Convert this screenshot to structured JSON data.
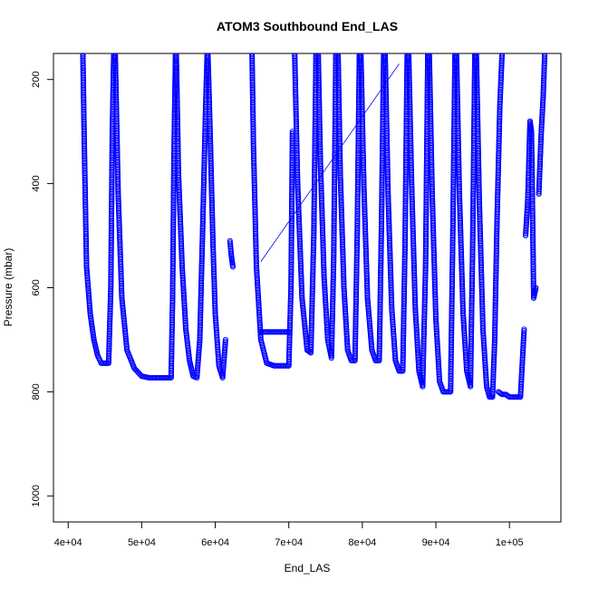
{
  "chart_data": {
    "type": "scatter",
    "title": "ATOM3 Southbound End_LAS",
    "xlabel": "End_LAS",
    "ylabel": "Pressure (mbar)",
    "xlim": [
      38000,
      107000
    ],
    "ylim": [
      1050,
      150
    ],
    "y_reversed": true,
    "grid": false,
    "legend": "none",
    "point_color": "#0000ff",
    "x_ticks": [
      {
        "value": 40000,
        "label": "4e+04"
      },
      {
        "value": 50000,
        "label": "5e+04"
      },
      {
        "value": 60000,
        "label": "6e+04"
      },
      {
        "value": 70000,
        "label": "7e+04"
      },
      {
        "value": 80000,
        "label": "8e+04"
      },
      {
        "value": 90000,
        "label": "9e+04"
      },
      {
        "value": 100000,
        "label": "1e+05"
      }
    ],
    "y_ticks": [
      {
        "value": 200,
        "label": "200"
      },
      {
        "value": 400,
        "label": "400"
      },
      {
        "value": 600,
        "label": "600"
      },
      {
        "value": 800,
        "label": "800"
      },
      {
        "value": 1000,
        "label": "1000"
      }
    ],
    "profiles": [
      {
        "x": [
          42000,
          42200,
          42500,
          43000,
          43500,
          44000,
          44500,
          45000,
          45500,
          45800,
          46000,
          46200
        ],
        "y": [
          150,
          330,
          560,
          650,
          700,
          730,
          745,
          745,
          745,
          600,
          300,
          150
        ]
      },
      {
        "x": [
          46400,
          46800,
          47300,
          48000,
          49000,
          50000,
          51000,
          52000,
          53000,
          54000,
          54200,
          54400,
          54600
        ],
        "y": [
          150,
          420,
          620,
          720,
          755,
          770,
          773,
          773,
          773,
          773,
          620,
          330,
          150
        ]
      },
      {
        "x": [
          54700,
          55000,
          55500,
          56000,
          56500,
          57000,
          57500,
          57900,
          58300,
          58700,
          58900
        ],
        "y": [
          150,
          380,
          560,
          680,
          740,
          770,
          773,
          700,
          480,
          250,
          150
        ]
      },
      {
        "x": [
          59000,
          59300,
          59700,
          60000,
          60500,
          61000,
          61400
        ],
        "y": [
          150,
          300,
          520,
          650,
          750,
          773,
          700
        ]
      },
      {
        "x": [
          62000,
          62200,
          62400
        ],
        "y": [
          510,
          540,
          560
        ]
      },
      {
        "x": [
          65000,
          65200,
          65600,
          66200,
          67000,
          68000,
          69000,
          70000,
          70300,
          70500
        ],
        "y": [
          150,
          330,
          560,
          700,
          745,
          750,
          750,
          750,
          600,
          300
        ]
      },
      {
        "x": [
          66200,
          67000,
          68000,
          69000,
          70000
        ],
        "y": [
          685,
          685,
          685,
          685,
          685
        ]
      },
      {
        "x": [
          70800,
          71200,
          71800,
          72500,
          73000,
          73400,
          73700
        ],
        "y": [
          150,
          400,
          620,
          720,
          725,
          500,
          150
        ]
      },
      {
        "x": [
          74000,
          74300,
          74800,
          75300,
          75800,
          76100,
          76400
        ],
        "y": [
          150,
          360,
          580,
          700,
          735,
          550,
          150
        ]
      },
      {
        "x": [
          76700,
          77000,
          77500,
          78000,
          78500,
          79000,
          79300,
          79600
        ],
        "y": [
          150,
          380,
          600,
          720,
          740,
          740,
          500,
          150
        ]
      },
      {
        "x": [
          79800,
          80200,
          80700,
          81300,
          81800,
          82300,
          82600,
          82900
        ],
        "y": [
          150,
          400,
          620,
          720,
          740,
          740,
          480,
          150
        ]
      },
      {
        "x": [
          83100,
          83500,
          84000,
          84500,
          85000,
          85500,
          85800,
          86100
        ],
        "y": [
          150,
          420,
          640,
          740,
          760,
          760,
          520,
          150
        ]
      },
      {
        "x": [
          86300,
          86700,
          87200,
          87700,
          88200,
          88600,
          88900
        ],
        "y": [
          150,
          400,
          640,
          760,
          790,
          560,
          150
        ]
      },
      {
        "x": [
          89100,
          89500,
          90000,
          90500,
          91000,
          91500,
          92000,
          92300,
          92600
        ],
        "y": [
          150,
          420,
          660,
          780,
          800,
          800,
          800,
          500,
          150
        ]
      },
      {
        "x": [
          92800,
          93200,
          93700,
          94200,
          94700,
          95000,
          95300
        ],
        "y": [
          150,
          420,
          650,
          760,
          790,
          520,
          150
        ]
      },
      {
        "x": [
          95500,
          95900,
          96400,
          96900,
          97300,
          97700,
          98000
        ],
        "y": [
          150,
          430,
          680,
          790,
          810,
          810,
          700
        ]
      },
      {
        "x": [
          98000,
          98300,
          98700,
          99000
        ],
        "y": [
          700,
          480,
          250,
          150
        ]
      },
      {
        "x": [
          98500,
          99000,
          99500,
          100000,
          100500,
          101000,
          101500,
          102000
        ],
        "y": [
          800,
          805,
          805,
          810,
          810,
          810,
          810,
          680
        ]
      },
      {
        "x": [
          102200,
          102500,
          102800,
          103000,
          103300,
          103600
        ],
        "y": [
          500,
          430,
          280,
          300,
          620,
          600
        ]
      },
      {
        "x": [
          104000,
          104300,
          104600,
          104800
        ],
        "y": [
          420,
          310,
          230,
          150
        ]
      }
    ],
    "transect_line": {
      "x": [
        66200,
        85000
      ],
      "y": [
        550,
        170
      ]
    }
  }
}
